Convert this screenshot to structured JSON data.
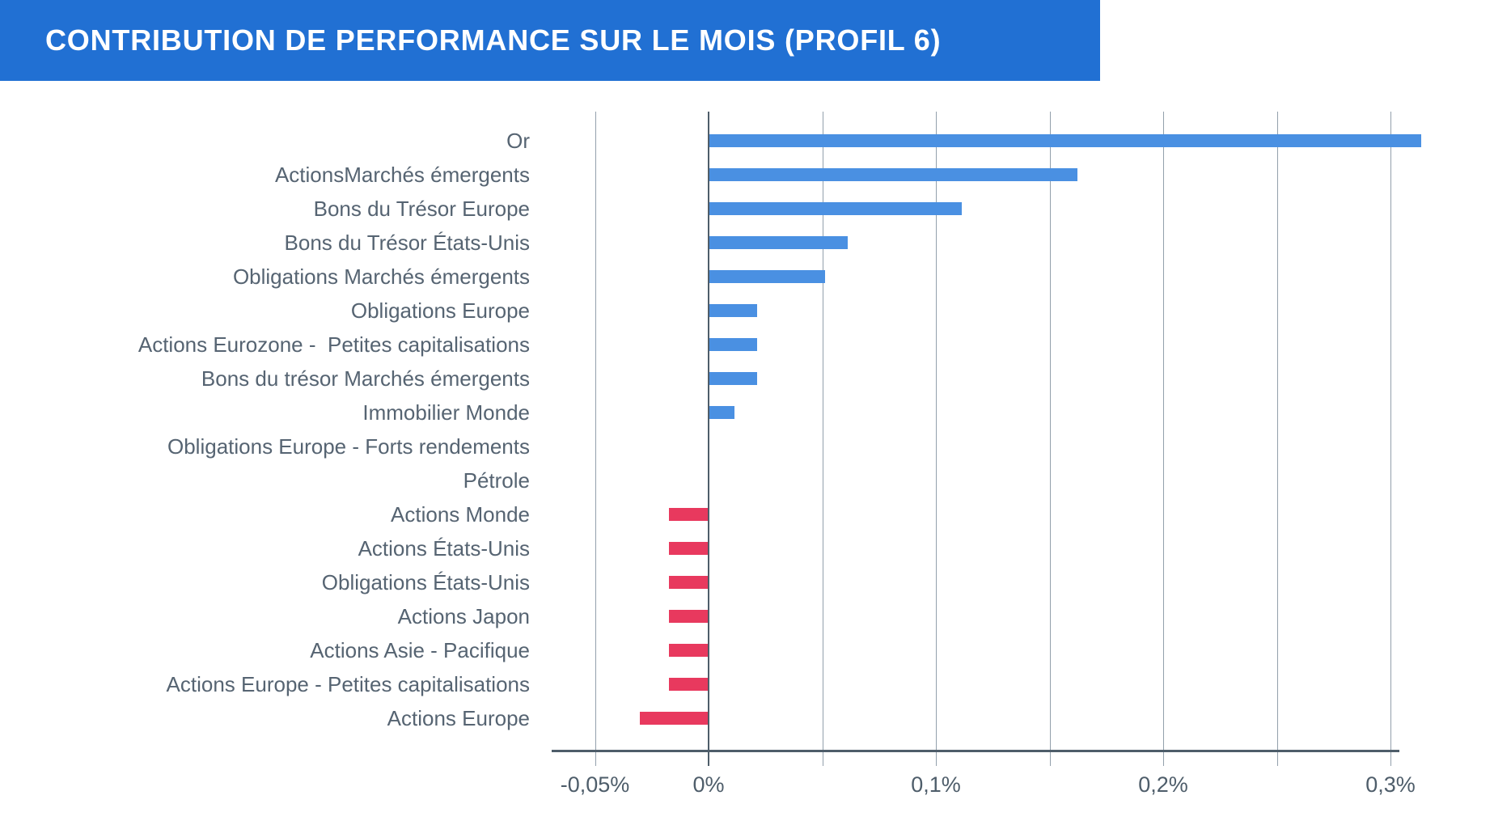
{
  "header": {
    "title": "CONTRIBUTION DE PERFORMANCE SUR LE MOIS (PROFIL 6)",
    "background": "#2170d3",
    "text_color": "#ffffff"
  },
  "chart_data": {
    "type": "bar",
    "orientation": "horizontal",
    "unit": "%",
    "categories": [
      "Or",
      "ActionsMarchés émergents",
      "Bons du Trésor Europe",
      "Bons du Trésor États-Unis",
      "Obligations Marchés émergents",
      "Obligations Europe",
      "Actions Eurozone -  Petites capitalisations",
      "Bons du trésor Marchés émergents",
      "Immobilier Monde",
      "Obligations Europe - Forts rendements",
      "Pétrole",
      "Actions Monde",
      "Actions États-Unis",
      "Obligations États-Unis",
      "Actions Japon",
      "Actions Asie - Pacifique",
      "Actions Europe - Petites capitalisations",
      "Actions Europe"
    ],
    "values": [
      0.313,
      0.162,
      0.111,
      0.061,
      0.051,
      0.021,
      0.021,
      0.021,
      0.011,
      0,
      0,
      -0.017,
      -0.017,
      -0.017,
      -0.017,
      -0.017,
      -0.017,
      -0.03
    ],
    "x_ticks": [
      {
        "value": -0.05,
        "label": "-0,05%"
      },
      {
        "value": 0,
        "label": "0%"
      },
      {
        "value": 0.1,
        "label": "0,1%"
      },
      {
        "value": 0.2,
        "label": "0,2%"
      },
      {
        "value": 0.3,
        "label": "0,3%"
      }
    ],
    "gridline_values": [
      -0.05,
      0,
      0.05,
      0.1,
      0.15,
      0.2,
      0.25,
      0.3
    ],
    "xlim": [
      -0.07,
      0.33
    ],
    "grid": true,
    "legend": "none",
    "positive_color": "#4a90e2",
    "negative_color": "#e8395e",
    "grid_color": "#93a0ac",
    "axis_color": "#4e5d6a",
    "label_color": "#566472"
  }
}
